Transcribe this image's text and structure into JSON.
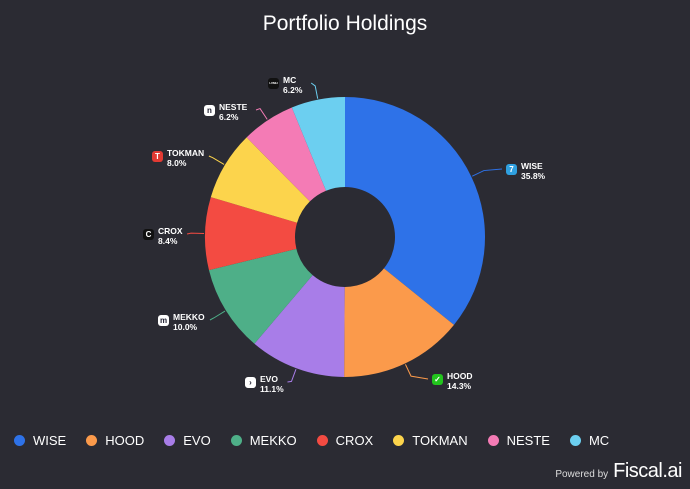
{
  "chart_data": {
    "type": "pie",
    "variant": "donut",
    "title": "Portfolio Holdings",
    "legend_position": "bottom",
    "slices": [
      {
        "name": "WISE",
        "value": 35.8,
        "label": "35.8%",
        "color": "#2e72e8",
        "icon": "wise-logo",
        "icon_text": "7",
        "icon_bg": "#2fa0e0"
      },
      {
        "name": "HOOD",
        "value": 14.3,
        "label": "14.3%",
        "color": "#fb9a4b",
        "icon": "robinhood-logo",
        "icon_text": "✓",
        "icon_bg": "#22c51d"
      },
      {
        "name": "EVO",
        "value": 11.1,
        "label": "11.1%",
        "color": "#a87de8",
        "icon": "evo-logo",
        "icon_text": "›",
        "icon_bg": "#ffffff"
      },
      {
        "name": "MEKKO",
        "value": 10.0,
        "label": "10.0%",
        "color": "#4eaf88",
        "icon": "mekko-logo",
        "icon_text": "m",
        "icon_bg": "#ffffff"
      },
      {
        "name": "CROX",
        "value": 8.4,
        "label": "8.4%",
        "color": "#f34b42",
        "icon": "crox-logo",
        "icon_text": "C",
        "icon_bg": "#111111"
      },
      {
        "name": "TOKMAN",
        "value": 8.0,
        "label": "8.0%",
        "color": "#fcd44c",
        "icon": "tokman-logo",
        "icon_text": "T",
        "icon_bg": "#e23a33"
      },
      {
        "name": "NESTE",
        "value": 6.2,
        "label": "6.2%",
        "color": "#f47bb5",
        "icon": "neste-logo",
        "icon_text": "n",
        "icon_bg": "#ffffff"
      },
      {
        "name": "MC",
        "value": 6.2,
        "label": "6.2%",
        "color": "#6ccff0",
        "icon": "lvmh-logo",
        "icon_text": "LVMH",
        "icon_bg": "#111111"
      }
    ]
  },
  "footer": {
    "powered_by": "Powered by",
    "brand": "Fiscal.ai"
  }
}
